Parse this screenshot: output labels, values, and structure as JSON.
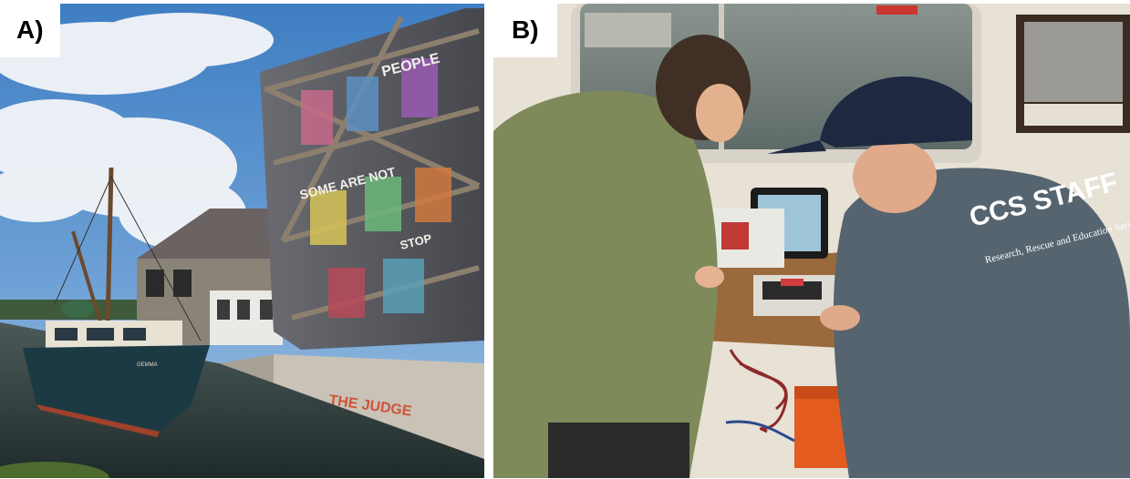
{
  "panel_a": {
    "label": "A)",
    "scene": {
      "boat_name": "GEMMA",
      "bridge_graffiti_lines": [
        "PEOPLE",
        "SOME ARE NOT",
        "STOP"
      ],
      "seawall_graffiti": "THE JUDGE"
    }
  },
  "panel_b": {
    "label": "B)",
    "scene": {
      "shirt_text": "CCS STAFF",
      "shirt_subtext": "Research, Rescue and Education Services"
    }
  },
  "colors": {
    "sky": "#4a86c8",
    "water": "#2c3a38",
    "hull": "#1c3a44",
    "shirt": "#56646f",
    "jacket": "#7f8a5a",
    "case": "#e35b1f"
  }
}
